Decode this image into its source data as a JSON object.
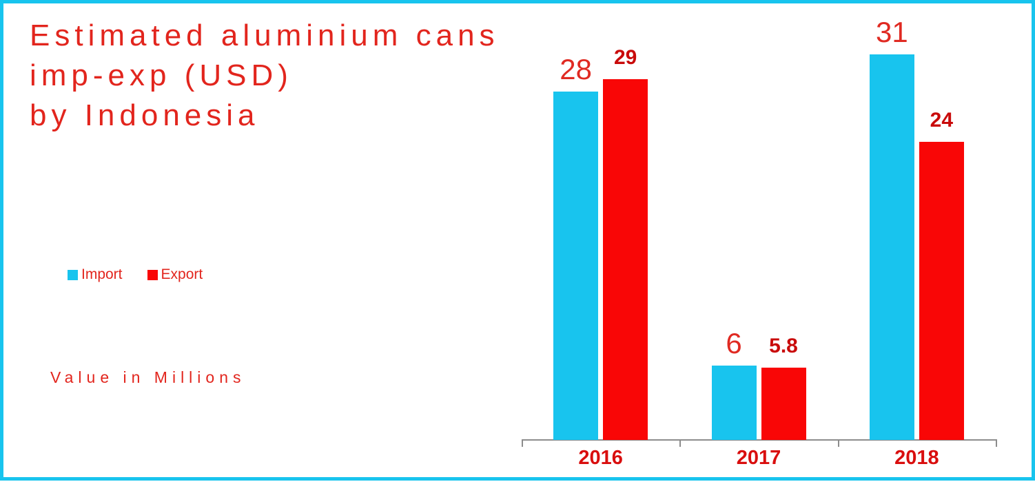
{
  "title": {
    "lines": [
      "Estimated aluminium cans",
      "imp-exp (USD)",
      "by Indonesia"
    ],
    "full_text": "Estimated aluminium cans imp-exp (USD) by Indonesia"
  },
  "value_note": "Value in Millions",
  "colors": {
    "accent_cyan": "#18C4EE",
    "bar_red": "#F90606",
    "title_red": "#E2251D",
    "export_label_red": "#C90B0B",
    "year_label_red": "#D90E0E",
    "axis_gray": "#8C8C8C"
  },
  "chart_data": {
    "type": "bar",
    "title": "Estimated aluminium cans imp-exp (USD) by Indonesia",
    "categories": [
      "2016",
      "2017",
      "2018"
    ],
    "series": [
      {
        "name": "Import",
        "color": "#18C4EE",
        "values": [
          28,
          6,
          31
        ],
        "labels": [
          "28",
          "6",
          "31"
        ]
      },
      {
        "name": "Export",
        "color": "#F90606",
        "values": [
          29,
          5.8,
          24
        ],
        "labels": [
          "29",
          "5.8",
          "24"
        ]
      }
    ],
    "ylabel": "Value in Millions",
    "ylim": [
      0,
      34.5
    ],
    "grid": false,
    "y_axis_visible": false,
    "legend_position": "middle-left",
    "data_labels": true
  }
}
